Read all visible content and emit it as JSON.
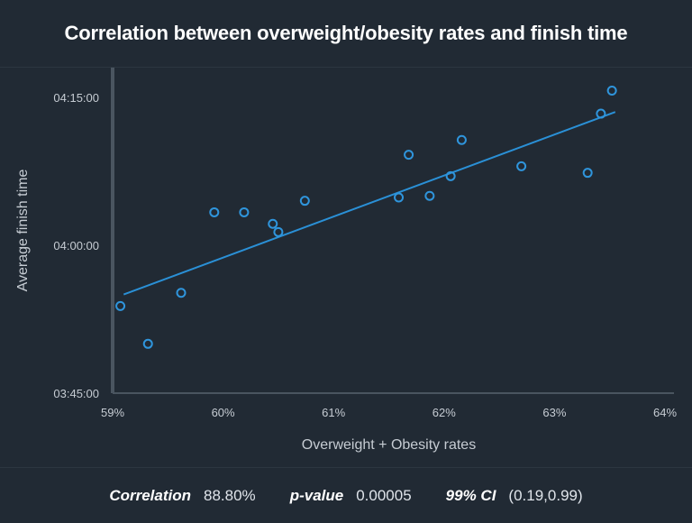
{
  "title": "Correlation between overweight/obesity rates and finish time",
  "chart_data": {
    "type": "scatter",
    "xlabel": "Overweight + Obesity rates",
    "ylabel": "Average finish time",
    "xlim": [
      59,
      64
    ],
    "ylim_minutes": [
      225,
      258
    ],
    "x_ticks": [
      {
        "value": 59,
        "label": "59%"
      },
      {
        "value": 60,
        "label": "60%"
      },
      {
        "value": 61,
        "label": "61%"
      },
      {
        "value": 62,
        "label": "62%"
      },
      {
        "value": 63,
        "label": "63%"
      },
      {
        "value": 64,
        "label": "64%"
      }
    ],
    "y_ticks": [
      {
        "value": 225,
        "label": "03:45:00"
      },
      {
        "value": 240,
        "label": "04:00:00"
      },
      {
        "value": 255,
        "label": "04:15:00"
      }
    ],
    "points": [
      {
        "x": 59.07,
        "y": "03:53:50"
      },
      {
        "x": 59.32,
        "y": "03:50:00"
      },
      {
        "x": 59.62,
        "y": "03:55:10"
      },
      {
        "x": 59.92,
        "y": "04:03:20"
      },
      {
        "x": 60.19,
        "y": "04:03:20"
      },
      {
        "x": 60.45,
        "y": "04:02:10"
      },
      {
        "x": 60.5,
        "y": "04:01:20"
      },
      {
        "x": 60.74,
        "y": "04:04:30"
      },
      {
        "x": 61.59,
        "y": "04:04:50"
      },
      {
        "x": 61.68,
        "y": "04:09:10"
      },
      {
        "x": 61.87,
        "y": "04:05:00"
      },
      {
        "x": 62.06,
        "y": "04:07:00"
      },
      {
        "x": 62.16,
        "y": "04:10:40"
      },
      {
        "x": 62.7,
        "y": "04:08:00"
      },
      {
        "x": 63.3,
        "y": "04:07:20"
      },
      {
        "x": 63.42,
        "y": "04:13:20"
      },
      {
        "x": 63.52,
        "y": "04:15:40"
      }
    ],
    "trendline": {
      "x": [
        59.1,
        63.55
      ],
      "y": [
        "03:55:00",
        "04:13:30"
      ]
    },
    "colors": {
      "point": "#2f95dc",
      "line": "#2a90d6",
      "axis": "#4a5560",
      "text": "#c6ccd3"
    }
  },
  "stats": [
    {
      "label": "Correlation",
      "value": "88.80%"
    },
    {
      "label": "p-value",
      "value": "0.00005"
    },
    {
      "label": "99% CI",
      "value": "(0.19,0.99)"
    }
  ]
}
